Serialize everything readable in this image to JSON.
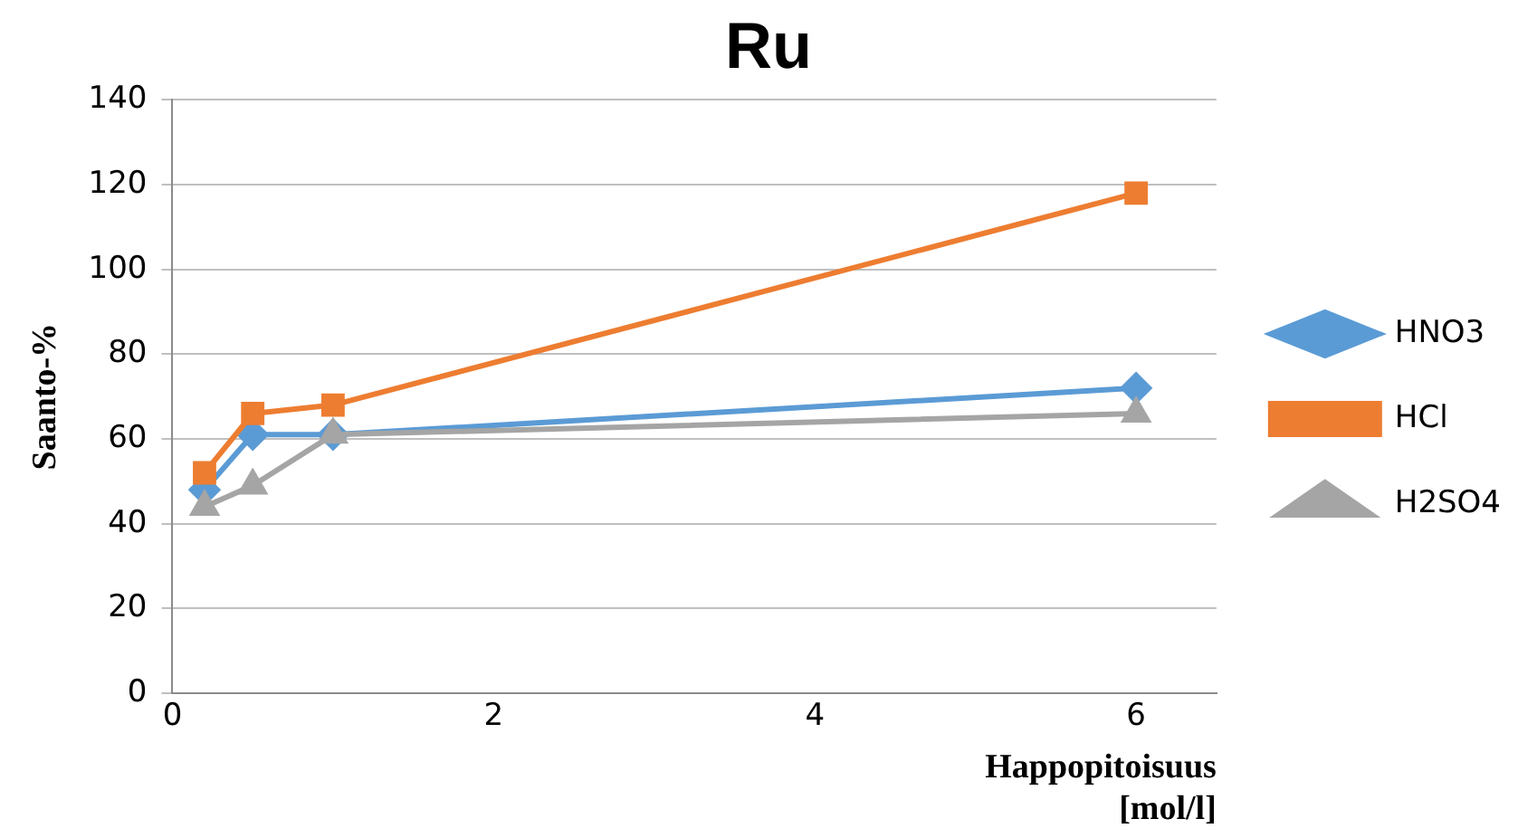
{
  "chart_data": {
    "type": "line",
    "title": "Ru",
    "xlabel": "Happopitoisuus [mol/l]",
    "ylabel": "Saanto-%",
    "x": [
      0.2,
      0.5,
      1,
      6
    ],
    "series": [
      {
        "name": "HNO3",
        "color": "#5b9bd5",
        "marker": "diamond",
        "values": [
          48,
          61,
          61,
          72
        ]
      },
      {
        "name": "HCl",
        "color": "#ed7d31",
        "marker": "square",
        "values": [
          52,
          66,
          68,
          118
        ]
      },
      {
        "name": "H2SO4",
        "color": "#a5a5a5",
        "marker": "triangle",
        "values": [
          44,
          49,
          61,
          66
        ]
      }
    ],
    "xlim": [
      0,
      6.5
    ],
    "xticks": [
      0,
      2,
      4,
      6
    ],
    "ylim": [
      0,
      140
    ],
    "yticks": [
      0,
      20,
      40,
      60,
      80,
      100,
      120,
      140
    ],
    "grid": "y",
    "legend": "right"
  }
}
